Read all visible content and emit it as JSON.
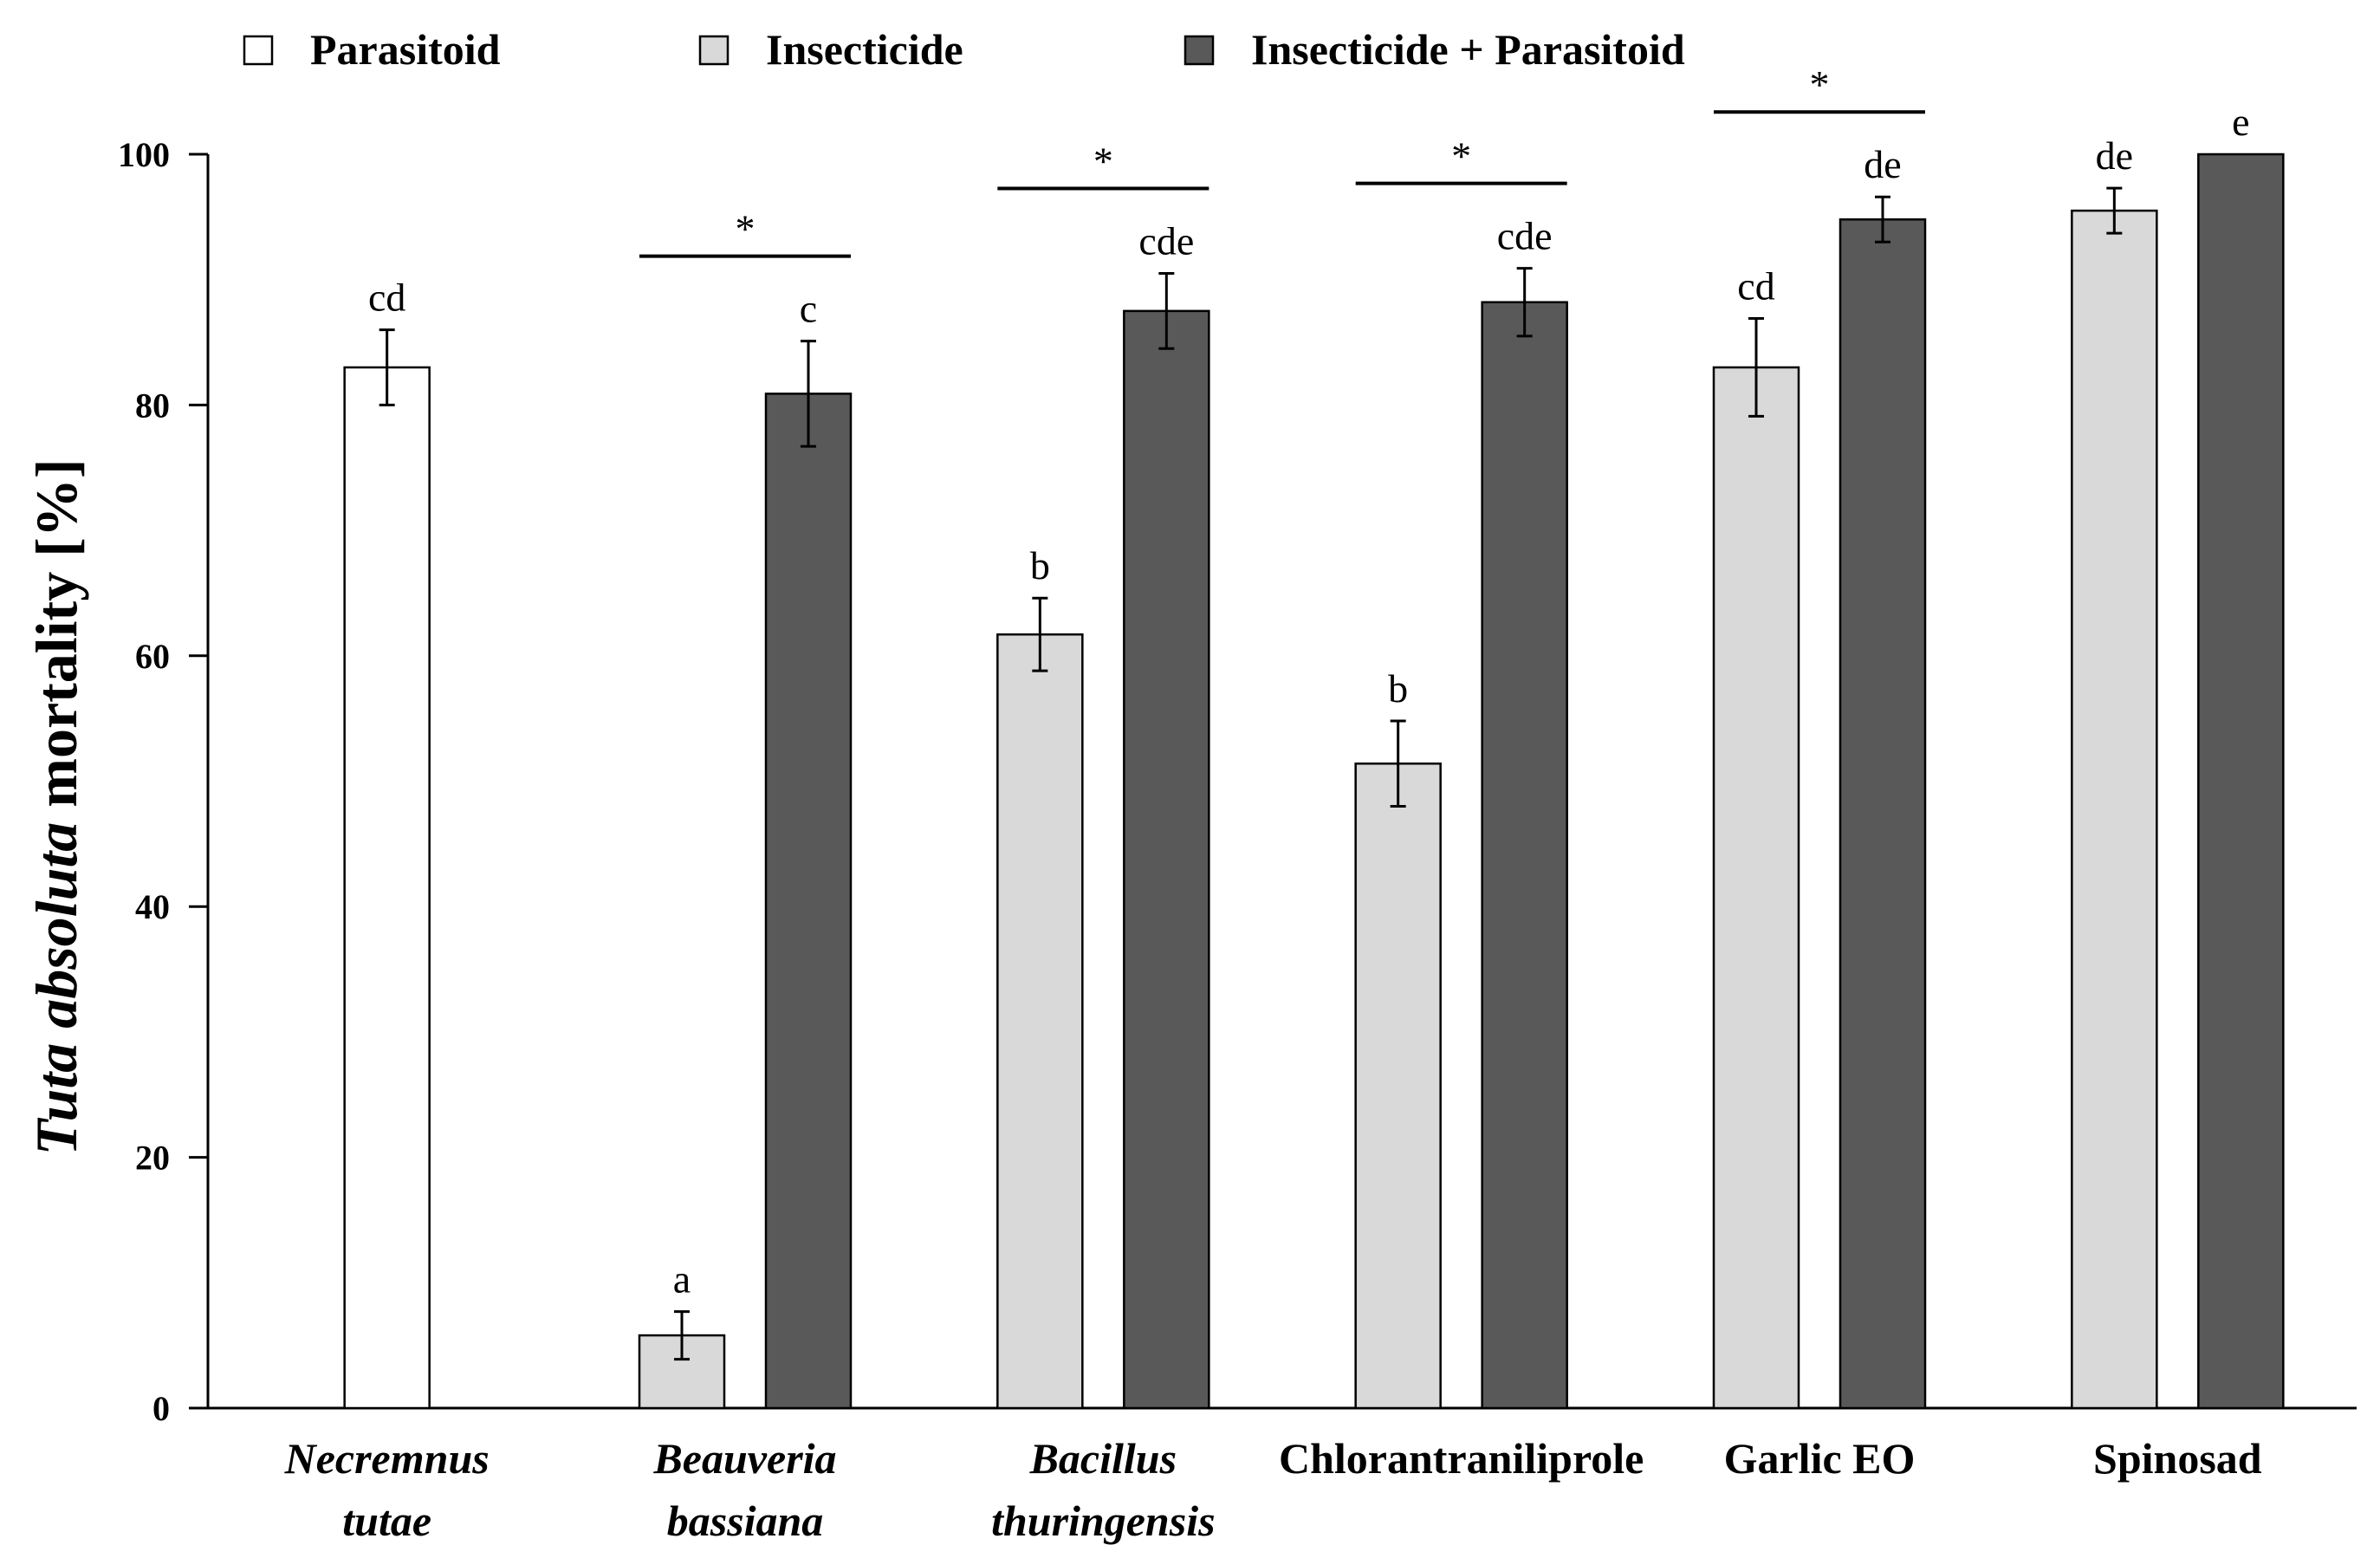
{
  "chart_data": {
    "type": "bar",
    "ylabel": {
      "italic": "Tuta absoluta",
      "plain": " mortality [%]"
    },
    "ylim": [
      0,
      100
    ],
    "yticks": [
      0,
      20,
      40,
      60,
      80,
      100
    ],
    "grid": false,
    "legend_position": "top",
    "categories": [
      {
        "lines": [
          "Necremnus",
          "tutae"
        ],
        "italic": true
      },
      {
        "lines": [
          "Beauveria",
          "bassiana"
        ],
        "italic": true
      },
      {
        "lines": [
          "Bacillus",
          "thuringensis"
        ],
        "italic": true
      },
      {
        "lines": [
          "Chlorantraniliprole"
        ],
        "italic": false
      },
      {
        "lines": [
          "Garlic EO"
        ],
        "italic": false
      },
      {
        "lines": [
          "Spinosad"
        ],
        "italic": false
      }
    ],
    "series": [
      {
        "name": "Parasitoid",
        "color": "#ffffff",
        "values": [
          83,
          null,
          null,
          null,
          null,
          null
        ],
        "errors": [
          3,
          null,
          null,
          null,
          null,
          null
        ],
        "letters": [
          "cd",
          null,
          null,
          null,
          null,
          null
        ]
      },
      {
        "name": "Insecticide",
        "color": "#d9d9d9",
        "values": [
          null,
          5.8,
          61.7,
          51.4,
          83,
          95.5
        ],
        "errors": [
          null,
          1.9,
          2.9,
          3.4,
          3.9,
          1.8
        ],
        "letters": [
          null,
          "a",
          "b",
          "b",
          "cd",
          "de"
        ]
      },
      {
        "name": "Insecticide + Parasitoid",
        "color": "#595959",
        "values": [
          null,
          80.9,
          87.5,
          88.2,
          94.8,
          100
        ],
        "errors": [
          null,
          4.2,
          3.0,
          2.7,
          1.8,
          0
        ],
        "letters": [
          null,
          "c",
          "cde",
          "cde",
          "de",
          "e"
        ]
      }
    ],
    "significance": [
      {
        "category": 1,
        "label": "*"
      },
      {
        "category": 2,
        "label": "*"
      },
      {
        "category": 3,
        "label": "*"
      },
      {
        "category": 4,
        "label": "*"
      }
    ]
  }
}
